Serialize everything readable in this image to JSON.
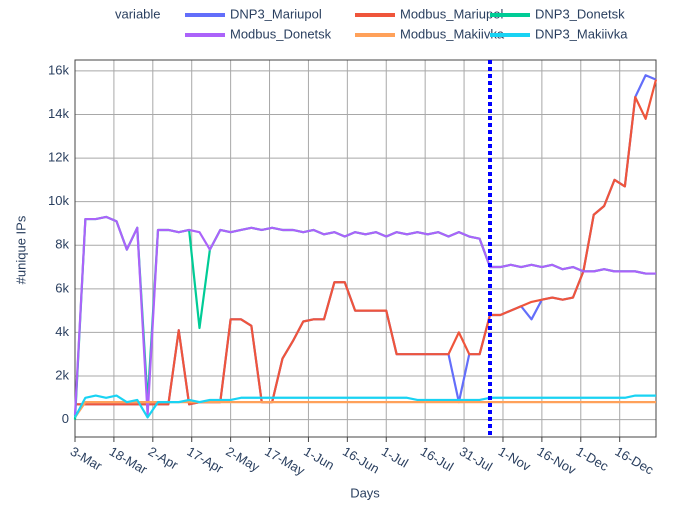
{
  "chart_data": {
    "type": "line",
    "x_label": "Days",
    "y_label": "#unique IPs",
    "legend_title": "variable",
    "legend_position": "top",
    "grid": true,
    "xlim": [
      0,
      224
    ],
    "ylim": [
      -800,
      16500
    ],
    "xticks": [
      {
        "value": 0,
        "label": "3-Mar"
      },
      {
        "value": 15,
        "label": "18-Mar"
      },
      {
        "value": 30,
        "label": "2-Apr"
      },
      {
        "value": 45,
        "label": "17-Apr"
      },
      {
        "value": 60,
        "label": "2-May"
      },
      {
        "value": 75,
        "label": "17-May"
      },
      {
        "value": 90,
        "label": "1-Jun"
      },
      {
        "value": 105,
        "label": "16-Jun"
      },
      {
        "value": 120,
        "label": "1-Jul"
      },
      {
        "value": 135,
        "label": "16-Jul"
      },
      {
        "value": 150,
        "label": "31-Jul"
      },
      {
        "value": 165,
        "label": "1-Nov"
      },
      {
        "value": 180,
        "label": "16-Nov"
      },
      {
        "value": 195,
        "label": "1-Dec"
      },
      {
        "value": 210,
        "label": "16-Dec"
      }
    ],
    "yticks": [
      0,
      {
        "value": 2000,
        "label": "2k"
      },
      {
        "value": 4000,
        "label": "4k"
      },
      {
        "value": 6000,
        "label": "6k"
      },
      {
        "value": 8000,
        "label": "8k"
      },
      {
        "value": 10000,
        "label": "10k"
      },
      {
        "value": 12000,
        "label": "12k"
      },
      {
        "value": 14000,
        "label": "14k"
      },
      {
        "value": 16000,
        "label": "16k"
      }
    ],
    "vline": {
      "x": 160,
      "color": "#0000ff"
    },
    "x": [
      0,
      4,
      8,
      12,
      16,
      20,
      24,
      28,
      32,
      36,
      40,
      44,
      48,
      52,
      56,
      60,
      64,
      68,
      72,
      76,
      80,
      84,
      88,
      92,
      96,
      100,
      104,
      108,
      112,
      116,
      120,
      124,
      128,
      132,
      136,
      140,
      144,
      148,
      152,
      156,
      160,
      164,
      168,
      172,
      176,
      180,
      184,
      188,
      192,
      196,
      200,
      204,
      208,
      212,
      216,
      220,
      224
    ],
    "series": [
      {
        "name": "DNP3_Mariupol",
        "color": "#636efa",
        "values": [
          700,
          700,
          700,
          700,
          700,
          700,
          700,
          700,
          700,
          700,
          4100,
          700,
          800,
          800,
          800,
          4600,
          4600,
          4300,
          800,
          800,
          2800,
          3600,
          4500,
          4600,
          4600,
          6300,
          6300,
          5000,
          5000,
          5000,
          5000,
          3000,
          3000,
          3000,
          3000,
          3000,
          3000,
          800,
          3000,
          3000,
          4800,
          4800,
          5000,
          5200,
          4600,
          5500,
          5600,
          5500,
          5600,
          6800,
          9400,
          9800,
          11000,
          10700,
          14800,
          15800,
          15600
        ]
      },
      {
        "name": "Modbus_Mariupol",
        "color": "#ef553b",
        "values": [
          700,
          700,
          700,
          700,
          700,
          700,
          700,
          700,
          700,
          700,
          4100,
          700,
          800,
          800,
          800,
          4600,
          4600,
          4300,
          800,
          800,
          2800,
          3600,
          4500,
          4600,
          4600,
          6300,
          6300,
          5000,
          5000,
          5000,
          5000,
          3000,
          3000,
          3000,
          3000,
          3000,
          3000,
          4000,
          3000,
          3000,
          4800,
          4800,
          5000,
          5200,
          5400,
          5500,
          5600,
          5500,
          5600,
          6800,
          9400,
          9800,
          11000,
          10700,
          14800,
          13800,
          15600
        ]
      },
      {
        "name": "DNP3_Donetsk",
        "color": "#00cc96",
        "values": [
          0,
          9200,
          9200,
          9300,
          9100,
          7800,
          8800,
          800,
          8700,
          8700,
          8600,
          8700,
          4200,
          7800,
          8700,
          8600,
          8700,
          8800,
          8700,
          8800,
          8700,
          8700,
          8600,
          8700,
          8500,
          8600,
          8400,
          8600,
          8500,
          8600,
          8400,
          8600,
          8500,
          8600,
          8500,
          8600,
          8400,
          8600,
          8400,
          8300,
          7000,
          7000,
          7100,
          7000,
          7100,
          7000,
          7100,
          6900,
          7000,
          6800,
          6800,
          6900,
          6800,
          6800,
          6800,
          6700,
          6700
        ]
      },
      {
        "name": "Modbus_Donetsk",
        "color": "#ab63fa",
        "values": [
          200,
          9200,
          9200,
          9300,
          9100,
          7800,
          8800,
          200,
          8700,
          8700,
          8600,
          8700,
          8600,
          7800,
          8700,
          8600,
          8700,
          8800,
          8700,
          8800,
          8700,
          8700,
          8600,
          8700,
          8500,
          8600,
          8400,
          8600,
          8500,
          8600,
          8400,
          8600,
          8500,
          8600,
          8500,
          8600,
          8400,
          8600,
          8400,
          8300,
          7000,
          7000,
          7100,
          7000,
          7100,
          7000,
          7100,
          6900,
          7000,
          6800,
          6800,
          6900,
          6800,
          6800,
          6800,
          6700,
          6700
        ]
      },
      {
        "name": "Modbus_Makiivka",
        "color": "#ffa15a",
        "values": [
          100,
          800,
          800,
          800,
          800,
          800,
          800,
          800,
          800,
          800,
          800,
          800,
          800,
          800,
          800,
          800,
          800,
          800,
          800,
          800,
          800,
          800,
          800,
          800,
          800,
          800,
          800,
          800,
          800,
          800,
          800,
          800,
          800,
          800,
          800,
          800,
          800,
          800,
          800,
          800,
          800,
          800,
          800,
          800,
          800,
          800,
          800,
          800,
          800,
          800,
          800,
          800,
          800,
          800,
          800,
          800,
          800
        ]
      },
      {
        "name": "DNP3_Makiivka",
        "color": "#19d3f3",
        "values": [
          100,
          1000,
          1100,
          1000,
          1100,
          800,
          900,
          100,
          800,
          800,
          800,
          900,
          800,
          900,
          900,
          900,
          1000,
          1000,
          1000,
          1000,
          1000,
          1000,
          1000,
          1000,
          1000,
          1000,
          1000,
          1000,
          1000,
          1000,
          1000,
          1000,
          1000,
          900,
          900,
          900,
          900,
          900,
          900,
          900,
          1000,
          1000,
          1000,
          1000,
          1000,
          1000,
          1000,
          1000,
          1000,
          1000,
          1000,
          1000,
          1000,
          1000,
          1100,
          1100,
          1100
        ]
      }
    ]
  }
}
